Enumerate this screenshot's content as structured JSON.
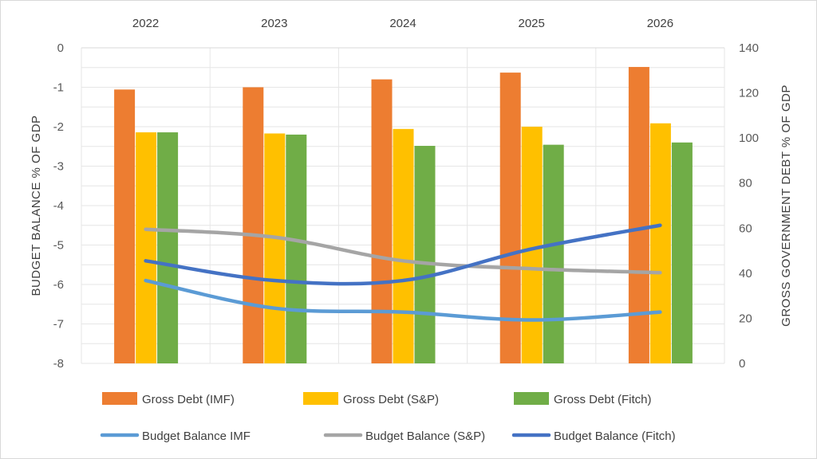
{
  "chart_data": {
    "type": "bar",
    "categories": [
      "2022",
      "2023",
      "2024",
      "2025",
      "2026"
    ],
    "category_axis_position": "top",
    "grid": true,
    "legend_position": "bottom",
    "y_left": {
      "label": "BUDGET BALANCE % OF GDP",
      "lim": [
        -8,
        0
      ],
      "ticks": [
        "0",
        "-1",
        "-2",
        "-3",
        "-4",
        "-5",
        "-6",
        "-7",
        "-8"
      ]
    },
    "y_right": {
      "label": "GROSS GOVERNMENT DEBT % OF GDP",
      "lim": [
        0,
        140
      ],
      "ticks": [
        "140",
        "120",
        "100",
        "80",
        "60",
        "40",
        "20",
        "0"
      ]
    },
    "bar_series": [
      {
        "name": "Gross Debt (IMF)",
        "color": "#ED7D31",
        "axis": "right",
        "values": [
          121.5,
          122.5,
          126.0,
          129.0,
          131.5
        ]
      },
      {
        "name": "Gross Debt (S&P)",
        "color": "#FFC000",
        "axis": "right",
        "values": [
          102.5,
          102.0,
          104.0,
          105.0,
          106.5
        ]
      },
      {
        "name": "Gross Debt (Fitch)",
        "color": "#70AD47",
        "axis": "right",
        "values": [
          102.5,
          101.5,
          96.5,
          97.0,
          98.0
        ]
      }
    ],
    "line_series": [
      {
        "name": "Budget Balance IMF",
        "color": "#5B9BD5",
        "axis": "left",
        "values": [
          -5.9,
          -6.6,
          -6.7,
          -6.9,
          -6.7
        ]
      },
      {
        "name": "Budget Balance (S&P)",
        "color": "#A5A5A5",
        "axis": "left",
        "values": [
          -4.6,
          -4.8,
          -5.4,
          -5.6,
          -5.7
        ]
      },
      {
        "name": "Budget Balance (Fitch)",
        "color": "#4472C4",
        "axis": "left",
        "values": [
          -5.4,
          -5.9,
          -5.9,
          -5.1,
          -4.5
        ]
      }
    ],
    "legend": [
      "Gross Debt (IMF)",
      "Gross Debt (S&P)",
      "Gross Debt (Fitch)",
      "Budget Balance IMF",
      "Budget Balance (S&P)",
      "Budget Balance (Fitch)"
    ]
  }
}
